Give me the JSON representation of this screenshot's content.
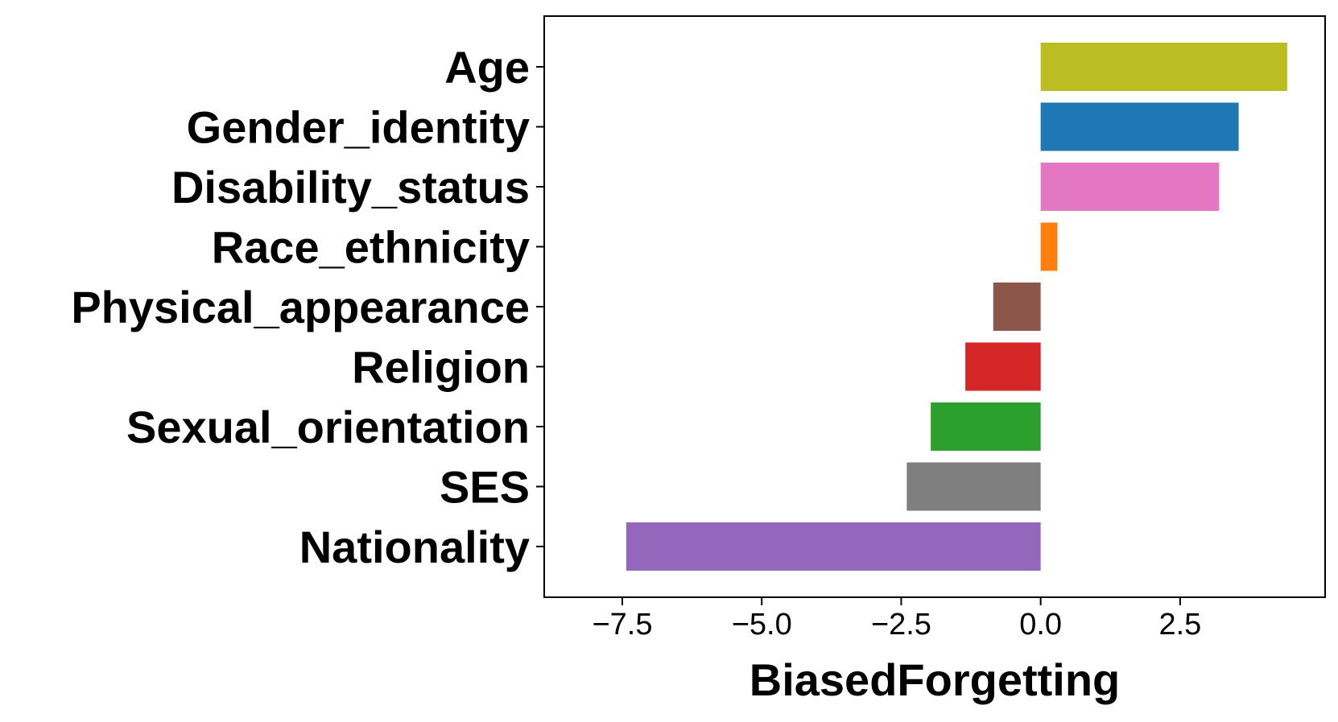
{
  "chart_data": {
    "type": "bar",
    "orientation": "horizontal",
    "title": "",
    "xlabel": "BiasedForgetting",
    "ylabel": "",
    "categories": [
      "Age",
      "Gender_identity",
      "Disability_status",
      "Race_ethnicity",
      "Physical_appearance",
      "Religion",
      "Sexual_orientation",
      "SES",
      "Nationality"
    ],
    "values": [
      4.42,
      3.55,
      3.2,
      0.3,
      -0.85,
      -1.35,
      -1.97,
      -2.4,
      -7.43
    ],
    "colors": [
      "#bcbd22",
      "#1f77b4",
      "#e377c2",
      "#ff7f0e",
      "#8c564b",
      "#d62728",
      "#2ca02c",
      "#7f7f7f",
      "#9467bd"
    ],
    "xlim": [
      -8.9,
      5.1
    ],
    "xticks": [
      -7.5,
      -5.0,
      -2.5,
      0.0,
      2.5
    ],
    "xtick_labels": [
      "−7.5",
      "−5.0",
      "−2.5",
      "0.0",
      "2.5"
    ],
    "grid": false,
    "legend": "none"
  }
}
